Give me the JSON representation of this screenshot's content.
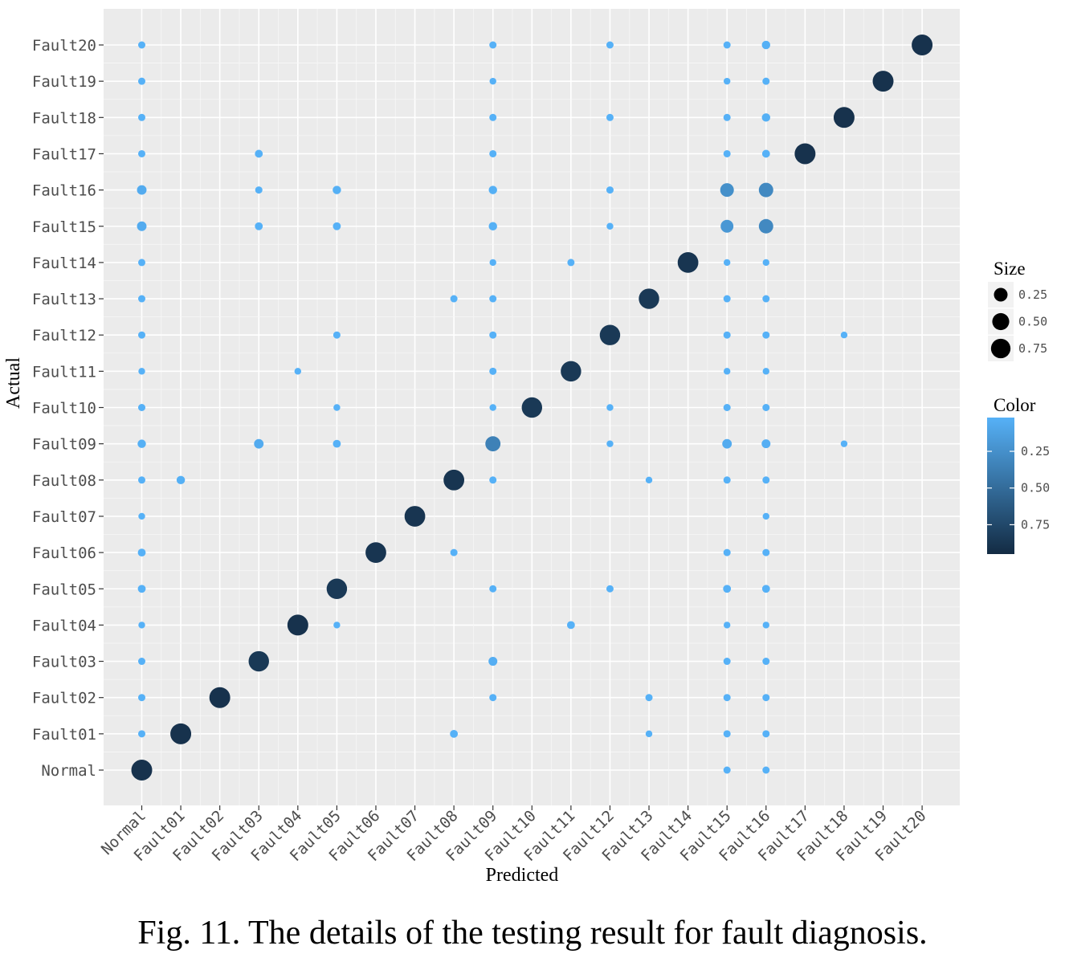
{
  "caption": "Fig. 11. The details of the testing result for fault diagnosis.",
  "chart_data": {
    "type": "scatter",
    "subtype": "bubble-confusion-matrix",
    "xlabel": "Predicted",
    "ylabel": "Actual",
    "categories": [
      "Normal",
      "Fault01",
      "Fault02",
      "Fault03",
      "Fault04",
      "Fault05",
      "Fault06",
      "Fault07",
      "Fault08",
      "Fault09",
      "Fault10",
      "Fault11",
      "Fault12",
      "Fault13",
      "Fault14",
      "Fault15",
      "Fault16",
      "Fault17",
      "Fault18",
      "Fault19",
      "Fault20"
    ],
    "grid": true,
    "legend_position": "right",
    "legend": {
      "size_title": "Size",
      "size_breaks": [
        0.25,
        0.5,
        0.75
      ],
      "size_labels": [
        "0.25",
        "0.50",
        "0.75"
      ],
      "color_title": "Color",
      "color_breaks": [
        0.25,
        0.5,
        0.75
      ],
      "color_labels": [
        "0.25",
        "0.50",
        "0.75"
      ],
      "color_low": "#56B1F7",
      "color_high": "#132B43",
      "color_range": [
        0.02,
        0.95
      ]
    },
    "points": [
      {
        "actual": "Normal",
        "predicted": "Normal",
        "value": 0.9
      },
      {
        "actual": "Normal",
        "predicted": "Fault15",
        "value": 0.01
      },
      {
        "actual": "Normal",
        "predicted": "Fault16",
        "value": 0.01
      },
      {
        "actual": "Fault01",
        "predicted": "Normal",
        "value": 0.01
      },
      {
        "actual": "Fault01",
        "predicted": "Fault01",
        "value": 0.9
      },
      {
        "actual": "Fault01",
        "predicted": "Fault08",
        "value": 0.02
      },
      {
        "actual": "Fault01",
        "predicted": "Fault13",
        "value": 0.005
      },
      {
        "actual": "Fault01",
        "predicted": "Fault15",
        "value": 0.01
      },
      {
        "actual": "Fault01",
        "predicted": "Fault16",
        "value": 0.01
      },
      {
        "actual": "Fault02",
        "predicted": "Normal",
        "value": 0.01
      },
      {
        "actual": "Fault02",
        "predicted": "Fault02",
        "value": 0.9
      },
      {
        "actual": "Fault02",
        "predicted": "Fault09",
        "value": 0.01
      },
      {
        "actual": "Fault02",
        "predicted": "Fault13",
        "value": 0.01
      },
      {
        "actual": "Fault02",
        "predicted": "Fault15",
        "value": 0.01
      },
      {
        "actual": "Fault02",
        "predicted": "Fault16",
        "value": 0.01
      },
      {
        "actual": "Fault03",
        "predicted": "Normal",
        "value": 0.01
      },
      {
        "actual": "Fault03",
        "predicted": "Fault03",
        "value": 0.85
      },
      {
        "actual": "Fault03",
        "predicted": "Fault09",
        "value": 0.04
      },
      {
        "actual": "Fault03",
        "predicted": "Fault15",
        "value": 0.01
      },
      {
        "actual": "Fault03",
        "predicted": "Fault16",
        "value": 0.01
      },
      {
        "actual": "Fault04",
        "predicted": "Normal",
        "value": 0.005
      },
      {
        "actual": "Fault04",
        "predicted": "Fault04",
        "value": 0.9
      },
      {
        "actual": "Fault04",
        "predicted": "Fault05",
        "value": 0.005
      },
      {
        "actual": "Fault04",
        "predicted": "Fault11",
        "value": 0.02
      },
      {
        "actual": "Fault04",
        "predicted": "Fault15",
        "value": 0.005
      },
      {
        "actual": "Fault04",
        "predicted": "Fault16",
        "value": 0.005
      },
      {
        "actual": "Fault05",
        "predicted": "Normal",
        "value": 0.02
      },
      {
        "actual": "Fault05",
        "predicted": "Fault05",
        "value": 0.85
      },
      {
        "actual": "Fault05",
        "predicted": "Fault09",
        "value": 0.01
      },
      {
        "actual": "Fault05",
        "predicted": "Fault12",
        "value": 0.01
      },
      {
        "actual": "Fault05",
        "predicted": "Fault15",
        "value": 0.02
      },
      {
        "actual": "Fault05",
        "predicted": "Fault16",
        "value": 0.02
      },
      {
        "actual": "Fault06",
        "predicted": "Normal",
        "value": 0.02
      },
      {
        "actual": "Fault06",
        "predicted": "Fault06",
        "value": 0.88
      },
      {
        "actual": "Fault06",
        "predicted": "Fault08",
        "value": 0.01
      },
      {
        "actual": "Fault06",
        "predicted": "Fault15",
        "value": 0.01
      },
      {
        "actual": "Fault06",
        "predicted": "Fault16",
        "value": 0.01
      },
      {
        "actual": "Fault07",
        "predicted": "Normal",
        "value": 0.005
      },
      {
        "actual": "Fault07",
        "predicted": "Fault07",
        "value": 0.88
      },
      {
        "actual": "Fault07",
        "predicted": "Fault16",
        "value": 0.005
      },
      {
        "actual": "Fault08",
        "predicted": "Normal",
        "value": 0.01
      },
      {
        "actual": "Fault08",
        "predicted": "Fault01",
        "value": 0.03
      },
      {
        "actual": "Fault08",
        "predicted": "Fault08",
        "value": 0.88
      },
      {
        "actual": "Fault08",
        "predicted": "Fault09",
        "value": 0.01
      },
      {
        "actual": "Fault08",
        "predicted": "Fault13",
        "value": 0.005
      },
      {
        "actual": "Fault08",
        "predicted": "Fault15",
        "value": 0.01
      },
      {
        "actual": "Fault08",
        "predicted": "Fault16",
        "value": 0.01
      },
      {
        "actual": "Fault09",
        "predicted": "Normal",
        "value": 0.03
      },
      {
        "actual": "Fault09",
        "predicted": "Fault03",
        "value": 0.06
      },
      {
        "actual": "Fault09",
        "predicted": "Fault05",
        "value": 0.02
      },
      {
        "actual": "Fault09",
        "predicted": "Fault09",
        "value": 0.35
      },
      {
        "actual": "Fault09",
        "predicted": "Fault12",
        "value": 0.005
      },
      {
        "actual": "Fault09",
        "predicted": "Fault15",
        "value": 0.06
      },
      {
        "actual": "Fault09",
        "predicted": "Fault16",
        "value": 0.04
      },
      {
        "actual": "Fault09",
        "predicted": "Fault18",
        "value": 0.005
      },
      {
        "actual": "Fault10",
        "predicted": "Normal",
        "value": 0.01
      },
      {
        "actual": "Fault10",
        "predicted": "Fault05",
        "value": 0.005
      },
      {
        "actual": "Fault10",
        "predicted": "Fault09",
        "value": 0.005
      },
      {
        "actual": "Fault10",
        "predicted": "Fault10",
        "value": 0.85
      },
      {
        "actual": "Fault10",
        "predicted": "Fault12",
        "value": 0.005
      },
      {
        "actual": "Fault10",
        "predicted": "Fault15",
        "value": 0.01
      },
      {
        "actual": "Fault10",
        "predicted": "Fault16",
        "value": 0.01
      },
      {
        "actual": "Fault11",
        "predicted": "Normal",
        "value": 0.005
      },
      {
        "actual": "Fault11",
        "predicted": "Fault04",
        "value": 0.005
      },
      {
        "actual": "Fault11",
        "predicted": "Fault09",
        "value": 0.01
      },
      {
        "actual": "Fault11",
        "predicted": "Fault11",
        "value": 0.85
      },
      {
        "actual": "Fault11",
        "predicted": "Fault15",
        "value": 0.005
      },
      {
        "actual": "Fault11",
        "predicted": "Fault16",
        "value": 0.005
      },
      {
        "actual": "Fault12",
        "predicted": "Normal",
        "value": 0.01
      },
      {
        "actual": "Fault12",
        "predicted": "Fault05",
        "value": 0.01
      },
      {
        "actual": "Fault12",
        "predicted": "Fault09",
        "value": 0.01
      },
      {
        "actual": "Fault12",
        "predicted": "Fault12",
        "value": 0.85
      },
      {
        "actual": "Fault12",
        "predicted": "Fault15",
        "value": 0.01
      },
      {
        "actual": "Fault12",
        "predicted": "Fault16",
        "value": 0.01
      },
      {
        "actual": "Fault12",
        "predicted": "Fault18",
        "value": 0.005
      },
      {
        "actual": "Fault13",
        "predicted": "Normal",
        "value": 0.01
      },
      {
        "actual": "Fault13",
        "predicted": "Fault08",
        "value": 0.01
      },
      {
        "actual": "Fault13",
        "predicted": "Fault09",
        "value": 0.01
      },
      {
        "actual": "Fault13",
        "predicted": "Fault13",
        "value": 0.85
      },
      {
        "actual": "Fault13",
        "predicted": "Fault15",
        "value": 0.01
      },
      {
        "actual": "Fault13",
        "predicted": "Fault16",
        "value": 0.01
      },
      {
        "actual": "Fault14",
        "predicted": "Normal",
        "value": 0.01
      },
      {
        "actual": "Fault14",
        "predicted": "Fault09",
        "value": 0.005
      },
      {
        "actual": "Fault14",
        "predicted": "Fault11",
        "value": 0.01
      },
      {
        "actual": "Fault14",
        "predicted": "Fault14",
        "value": 0.88
      },
      {
        "actual": "Fault14",
        "predicted": "Fault15",
        "value": 0.005
      },
      {
        "actual": "Fault14",
        "predicted": "Fault16",
        "value": 0.005
      },
      {
        "actual": "Fault15",
        "predicted": "Normal",
        "value": 0.06
      },
      {
        "actual": "Fault15",
        "predicted": "Fault03",
        "value": 0.02
      },
      {
        "actual": "Fault15",
        "predicted": "Fault05",
        "value": 0.02
      },
      {
        "actual": "Fault15",
        "predicted": "Fault09",
        "value": 0.03
      },
      {
        "actual": "Fault15",
        "predicted": "Fault12",
        "value": 0.005
      },
      {
        "actual": "Fault15",
        "predicted": "Fault15",
        "value": 0.2
      },
      {
        "actual": "Fault15",
        "predicted": "Fault16",
        "value": 0.3
      },
      {
        "actual": "Fault16",
        "predicted": "Normal",
        "value": 0.06
      },
      {
        "actual": "Fault16",
        "predicted": "Fault03",
        "value": 0.01
      },
      {
        "actual": "Fault16",
        "predicted": "Fault05",
        "value": 0.03
      },
      {
        "actual": "Fault16",
        "predicted": "Fault09",
        "value": 0.03
      },
      {
        "actual": "Fault16",
        "predicted": "Fault12",
        "value": 0.01
      },
      {
        "actual": "Fault16",
        "predicted": "Fault15",
        "value": 0.25
      },
      {
        "actual": "Fault16",
        "predicted": "Fault16",
        "value": 0.3
      },
      {
        "actual": "Fault17",
        "predicted": "Normal",
        "value": 0.01
      },
      {
        "actual": "Fault17",
        "predicted": "Fault03",
        "value": 0.02
      },
      {
        "actual": "Fault17",
        "predicted": "Fault09",
        "value": 0.01
      },
      {
        "actual": "Fault17",
        "predicted": "Fault15",
        "value": 0.01
      },
      {
        "actual": "Fault17",
        "predicted": "Fault16",
        "value": 0.02
      },
      {
        "actual": "Fault17",
        "predicted": "Fault17",
        "value": 0.9
      },
      {
        "actual": "Fault18",
        "predicted": "Normal",
        "value": 0.01
      },
      {
        "actual": "Fault18",
        "predicted": "Fault09",
        "value": 0.01
      },
      {
        "actual": "Fault18",
        "predicted": "Fault12",
        "value": 0.01
      },
      {
        "actual": "Fault18",
        "predicted": "Fault15",
        "value": 0.01
      },
      {
        "actual": "Fault18",
        "predicted": "Fault16",
        "value": 0.03
      },
      {
        "actual": "Fault18",
        "predicted": "Fault18",
        "value": 0.9
      },
      {
        "actual": "Fault19",
        "predicted": "Normal",
        "value": 0.01
      },
      {
        "actual": "Fault19",
        "predicted": "Fault09",
        "value": 0.005
      },
      {
        "actual": "Fault19",
        "predicted": "Fault15",
        "value": 0.005
      },
      {
        "actual": "Fault19",
        "predicted": "Fault16",
        "value": 0.01
      },
      {
        "actual": "Fault19",
        "predicted": "Fault19",
        "value": 0.9
      },
      {
        "actual": "Fault20",
        "predicted": "Normal",
        "value": 0.01
      },
      {
        "actual": "Fault20",
        "predicted": "Fault09",
        "value": 0.01
      },
      {
        "actual": "Fault20",
        "predicted": "Fault12",
        "value": 0.01
      },
      {
        "actual": "Fault20",
        "predicted": "Fault15",
        "value": 0.01
      },
      {
        "actual": "Fault20",
        "predicted": "Fault16",
        "value": 0.03
      },
      {
        "actual": "Fault20",
        "predicted": "Fault20",
        "value": 0.9
      }
    ]
  }
}
